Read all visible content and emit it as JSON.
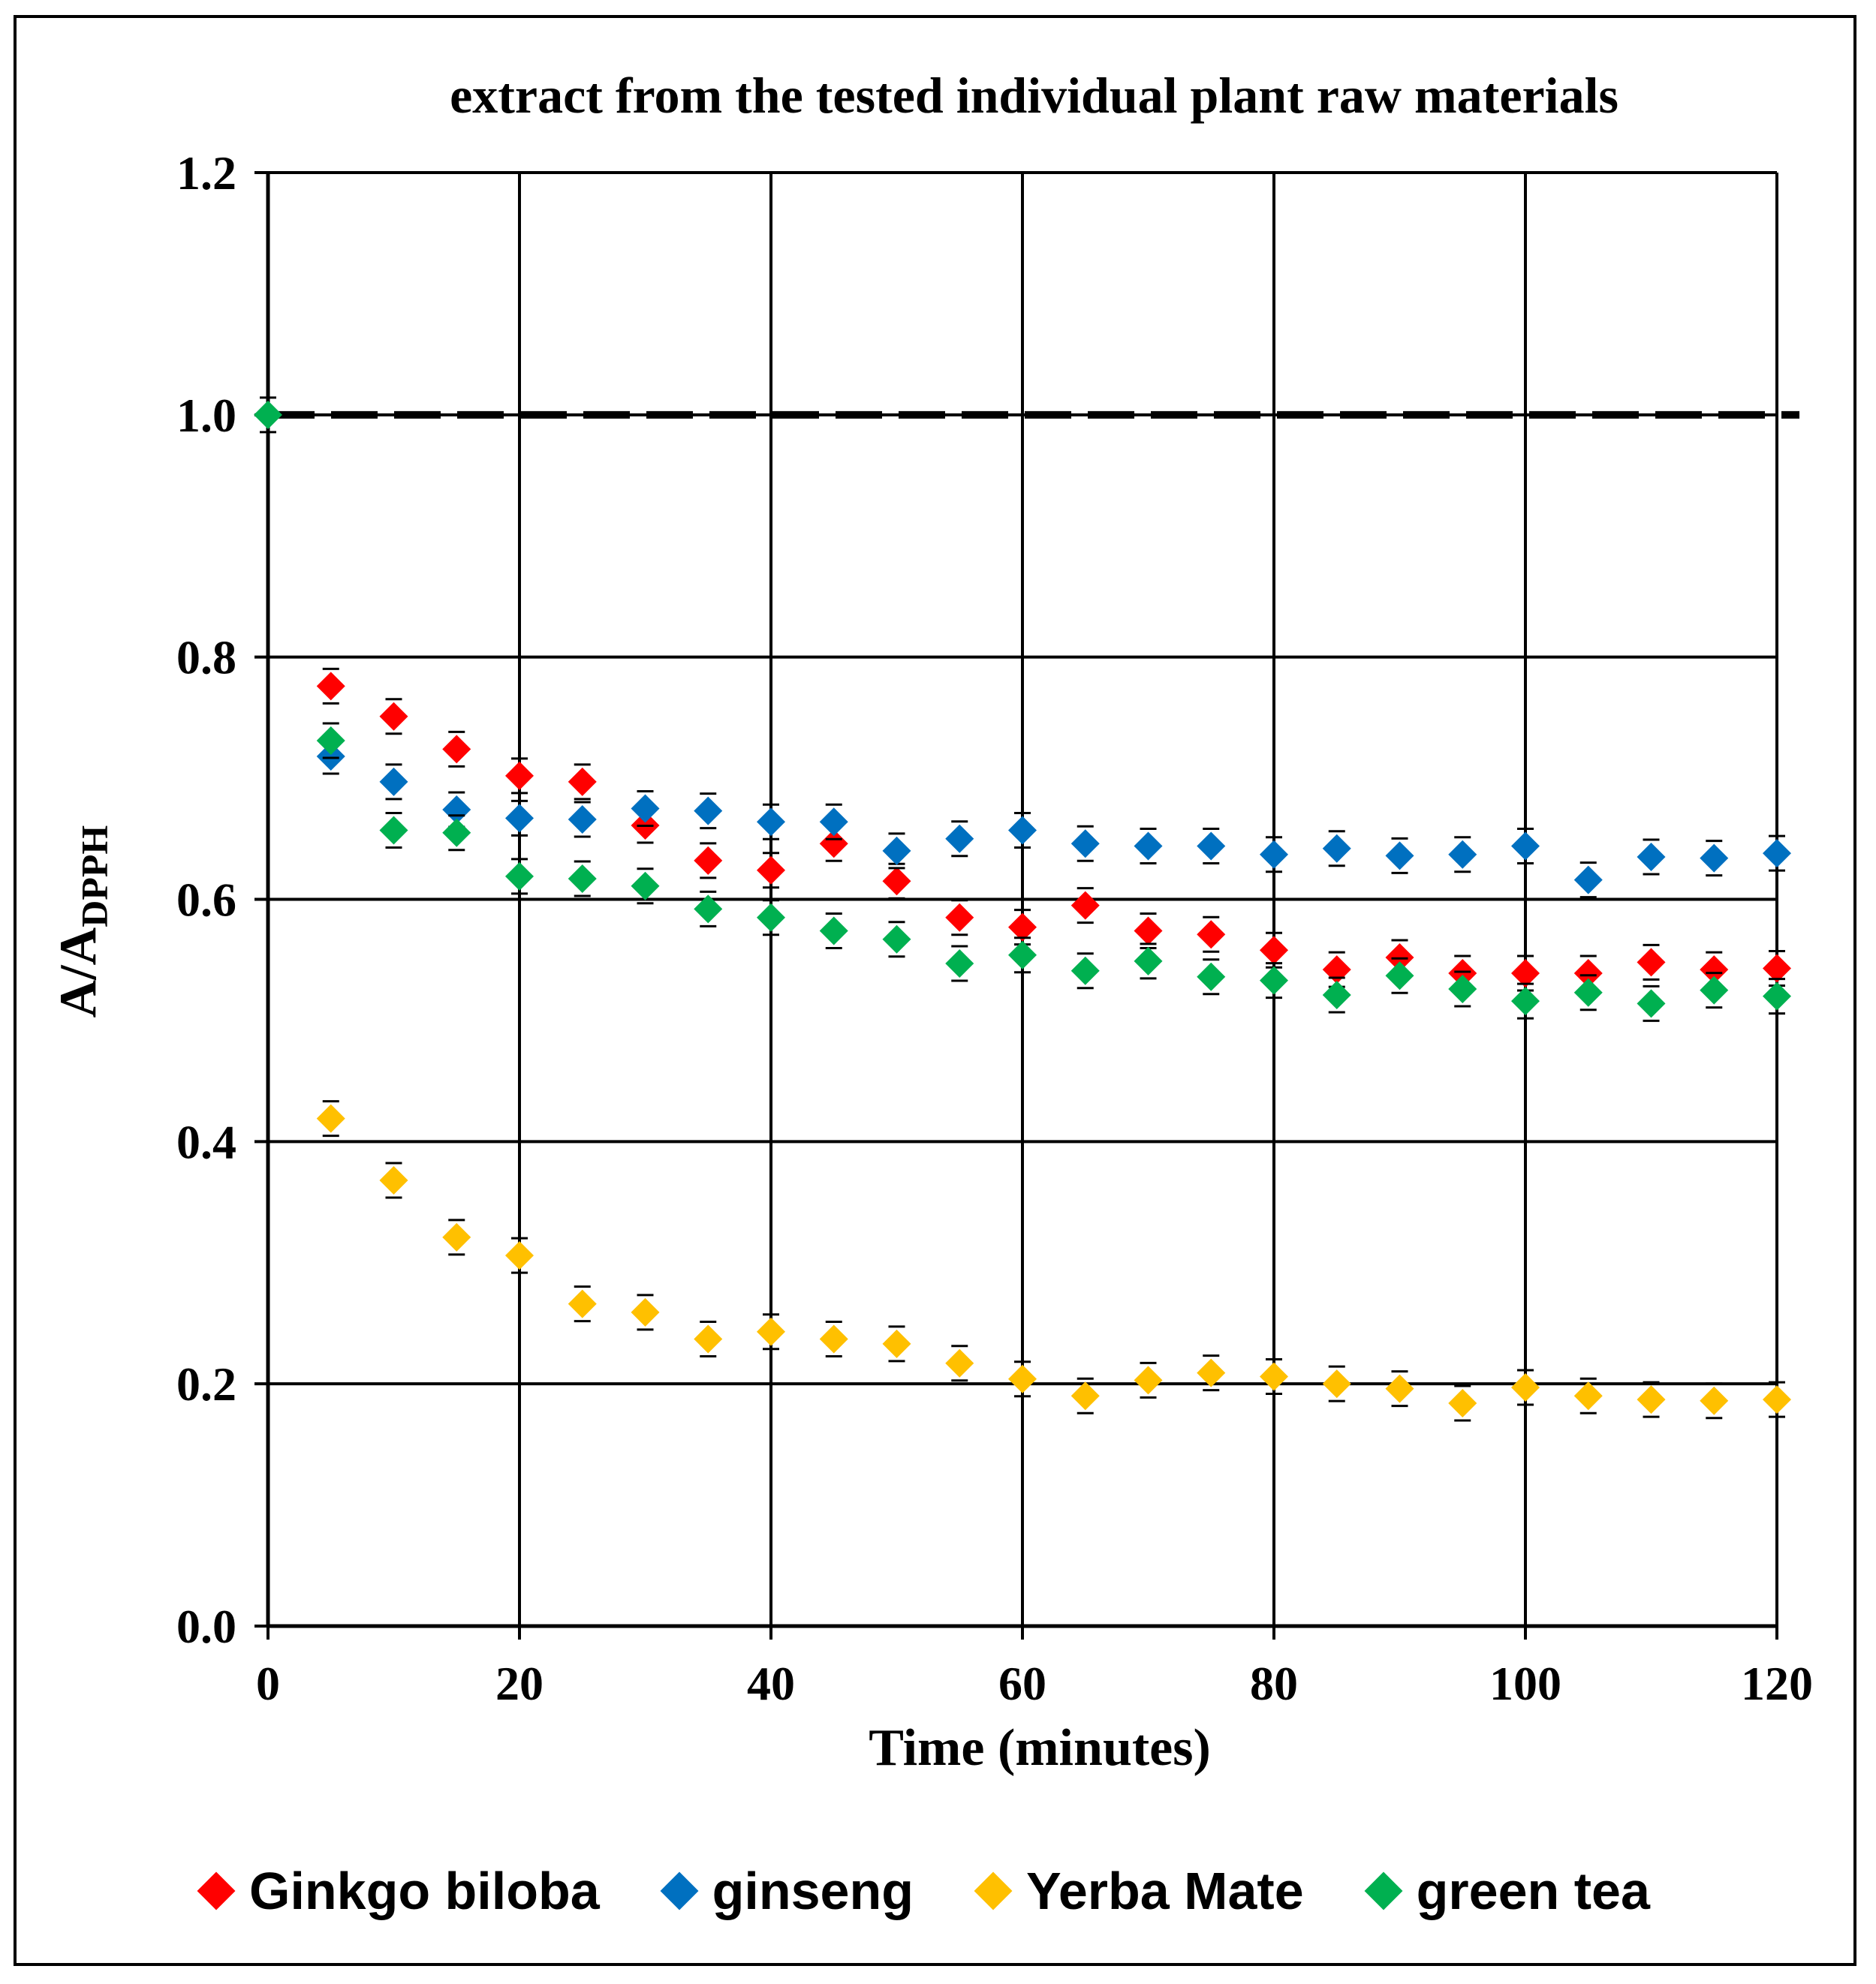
{
  "chart_data": {
    "type": "scatter",
    "title": "extract from the tested individual plant raw materials",
    "xlabel": "Time (minutes)",
    "ylabel_main": "A/A",
    "ylabel_sub": "DPPH",
    "xlim": [
      0,
      120
    ],
    "ylim": [
      0,
      1.2
    ],
    "x_ticks": [
      "0",
      "20",
      "40",
      "60",
      "80",
      "100",
      "120"
    ],
    "y_ticks": [
      "0.0",
      "0.2",
      "0.4",
      "0.6",
      "0.8",
      "1.0",
      "1.2"
    ],
    "grid": true,
    "legend_position": "bottom",
    "reference_line": {
      "y": 1.0,
      "style": "dashed"
    },
    "series": [
      {
        "name": "Ginkgo biloba",
        "color": "#ff0000",
        "x": [
          5,
          10,
          15,
          20,
          25,
          30,
          35,
          40,
          45,
          50,
          55,
          60,
          65,
          70,
          75,
          80,
          85,
          90,
          95,
          100,
          105,
          110,
          115,
          120
        ],
        "y": [
          0.776,
          0.751,
          0.724,
          0.702,
          0.697,
          0.661,
          0.632,
          0.624,
          0.646,
          0.615,
          0.585,
          0.577,
          0.595,
          0.574,
          0.571,
          0.558,
          0.542,
          0.552,
          0.539,
          0.539,
          0.539,
          0.548,
          0.542,
          0.543
        ]
      },
      {
        "name": "ginseng",
        "color": "#0070c0",
        "x": [
          5,
          10,
          15,
          20,
          25,
          30,
          35,
          40,
          45,
          50,
          55,
          60,
          65,
          70,
          75,
          80,
          85,
          90,
          95,
          100,
          105,
          110,
          115,
          120
        ],
        "y": [
          0.718,
          0.697,
          0.674,
          0.667,
          0.666,
          0.675,
          0.673,
          0.664,
          0.664,
          0.64,
          0.65,
          0.657,
          0.646,
          0.644,
          0.644,
          0.637,
          0.642,
          0.636,
          0.637,
          0.644,
          0.616,
          0.635,
          0.634,
          0.638
        ]
      },
      {
        "name": "Yerba Mate",
        "color": "#ffc000",
        "x": [
          5,
          10,
          15,
          20,
          25,
          30,
          35,
          40,
          45,
          50,
          55,
          60,
          65,
          70,
          75,
          80,
          85,
          90,
          95,
          100,
          105,
          110,
          115,
          120
        ],
        "y": [
          0.419,
          0.368,
          0.321,
          0.306,
          0.266,
          0.259,
          0.237,
          0.243,
          0.237,
          0.233,
          0.217,
          0.204,
          0.19,
          0.203,
          0.209,
          0.206,
          0.2,
          0.196,
          0.184,
          0.197,
          0.19,
          0.187,
          0.186,
          0.187
        ]
      },
      {
        "name": "green tea",
        "color": "#00b050",
        "x": [
          0,
          5,
          10,
          15,
          20,
          25,
          30,
          35,
          40,
          45,
          50,
          55,
          60,
          65,
          70,
          75,
          80,
          85,
          90,
          95,
          100,
          105,
          110,
          115,
          120
        ],
        "y": [
          1.0,
          0.731,
          0.657,
          0.655,
          0.619,
          0.617,
          0.611,
          0.592,
          0.585,
          0.574,
          0.567,
          0.547,
          0.554,
          0.541,
          0.549,
          0.536,
          0.533,
          0.521,
          0.537,
          0.526,
          0.516,
          0.523,
          0.514,
          0.525,
          0.52
        ]
      }
    ]
  }
}
